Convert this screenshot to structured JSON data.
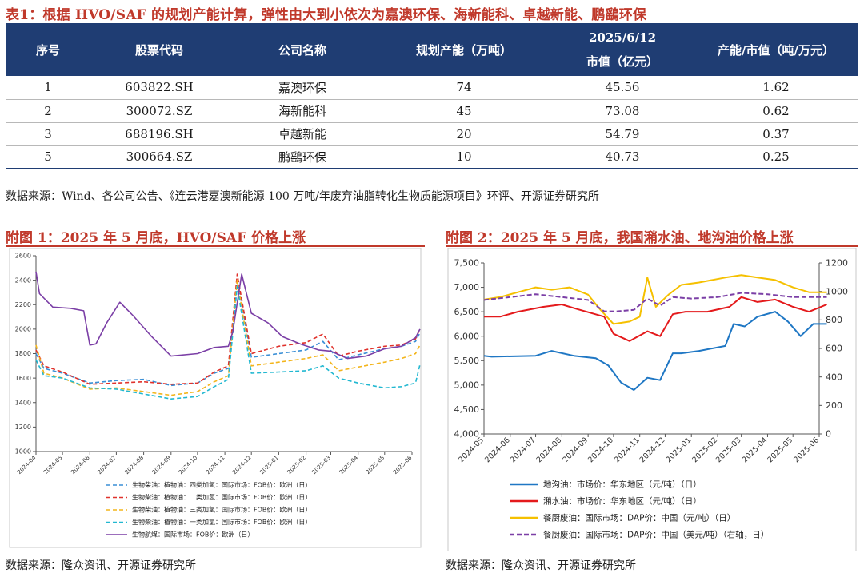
{
  "table1": {
    "title": "表1：根据 HVO/SAF 的规划产能计算，弹性由大到小依次为嘉澳环保、海新能科、卓越新能、鹏鷂环保",
    "headers": {
      "seq": "序号",
      "code": "股票代码",
      "name": "公司名称",
      "capacity": "规划产能（万吨）",
      "date": "2025/6/12",
      "mcap": "市值（亿元）",
      "ratio": "产能/市值（吨/万元）"
    },
    "rows": [
      {
        "seq": "1",
        "code": "603822.SH",
        "name": "嘉澳环保",
        "capacity": "74",
        "mcap": "45.56",
        "ratio": "1.62"
      },
      {
        "seq": "2",
        "code": "300072.SZ",
        "name": "海新能科",
        "capacity": "45",
        "mcap": "73.08",
        "ratio": "0.62"
      },
      {
        "seq": "3",
        "code": "688196.SH",
        "name": "卓越新能",
        "capacity": "20",
        "mcap": "54.79",
        "ratio": "0.37"
      },
      {
        "seq": "5",
        "code": "300664.SZ",
        "name": "鹏鷂环保",
        "capacity": "10",
        "mcap": "40.73",
        "ratio": "0.25"
      }
    ],
    "source": "数据来源：Wind、各公司公告、《连云港嘉澳新能源 100 万吨/年废弃油脂转化生物质能源项目》环评、开源证券研究所"
  },
  "fig1": {
    "title": "附图 1：2025 年 5 月底，HVO/SAF 价格上涨",
    "source": "数据来源：隆众资讯、开源证券研究所"
  },
  "fig2": {
    "title": "附图 2：2025 年 5 月底，我国潲水油、地沟油价格上涨",
    "source": "数据来源：隆众资讯、开源证券研究所"
  },
  "chart_data": [
    {
      "type": "line",
      "x_ticks": [
        "2024-04",
        "2024-05",
        "2024-06",
        "2024-07",
        "2024-08",
        "2024-09",
        "2024-10",
        "2024-11",
        "2024-12",
        "2025-01",
        "2025-02",
        "2025-03",
        "2025-04",
        "2025-05",
        "2025-06"
      ],
      "ylim": [
        1000,
        2600
      ],
      "y_ticks": [
        "1000",
        "1200",
        "1400",
        "1600",
        "1800",
        "2000",
        "2200",
        "2400",
        "2600"
      ],
      "grid": false,
      "legend_position": "bottom",
      "series": [
        {
          "name": "生物柴油：植物油：四类加氢：国际市场：FOB价：欧洲（日）",
          "color": "#3a8fd6",
          "dash": "dashed",
          "x": [
            "2024-04-01",
            "2024-04-10",
            "2024-05-01",
            "2024-06-01",
            "2024-07-01",
            "2024-08-01",
            "2024-09-01",
            "2024-10-01",
            "2024-10-20",
            "2024-11-05",
            "2024-11-15",
            "2024-12-01",
            "2025-01-01",
            "2025-02-01",
            "2025-02-20",
            "2025-03-10",
            "2025-04-01",
            "2025-05-01",
            "2025-05-20",
            "2025-06-05",
            "2025-06-10"
          ],
          "values": [
            1800,
            1680,
            1640,
            1560,
            1580,
            1590,
            1540,
            1560,
            1640,
            1680,
            2400,
            1770,
            1800,
            1830,
            1900,
            1750,
            1790,
            1840,
            1860,
            1900,
            1970
          ]
        },
        {
          "name": "生物柴油：植物油：二类加氢：国际市场：FOB价：欧洲（日）",
          "color": "#e0322c",
          "dash": "dashed",
          "x": [
            "2024-04-01",
            "2024-04-10",
            "2024-05-01",
            "2024-06-01",
            "2024-07-01",
            "2024-08-01",
            "2024-09-01",
            "2024-10-01",
            "2024-10-20",
            "2024-11-05",
            "2024-11-15",
            "2024-12-01",
            "2025-01-01",
            "2025-02-01",
            "2025-02-20",
            "2025-03-10",
            "2025-04-01",
            "2025-05-01",
            "2025-05-20",
            "2025-06-05",
            "2025-06-10"
          ],
          "values": [
            1830,
            1700,
            1650,
            1550,
            1560,
            1570,
            1550,
            1560,
            1650,
            1700,
            2450,
            1800,
            1860,
            1890,
            1960,
            1780,
            1820,
            1860,
            1870,
            1920,
            2000
          ]
        },
        {
          "name": "生物柴油：植物油：三类加氢：国际市场：FOB价：欧洲（日）",
          "color": "#f3b51c",
          "dash": "dashed",
          "x": [
            "2024-04-01",
            "2024-04-10",
            "2024-05-01",
            "2024-06-01",
            "2024-07-01",
            "2024-08-01",
            "2024-09-01",
            "2024-10-01",
            "2024-10-20",
            "2024-11-05",
            "2024-11-15",
            "2024-12-01",
            "2025-01-01",
            "2025-02-01",
            "2025-02-20",
            "2025-03-10",
            "2025-04-01",
            "2025-05-01",
            "2025-05-20",
            "2025-06-05",
            "2025-06-10"
          ],
          "values": [
            1870,
            1640,
            1600,
            1510,
            1520,
            1490,
            1460,
            1490,
            1570,
            1620,
            2400,
            1700,
            1730,
            1760,
            1790,
            1660,
            1690,
            1730,
            1760,
            1800,
            1870
          ]
        },
        {
          "name": "生物柴油：植物油：一类加氢：国际市场：FOB价：欧洲（日）",
          "color": "#22b8d1",
          "dash": "dashed",
          "x": [
            "2024-04-01",
            "2024-04-10",
            "2024-05-01",
            "2024-06-01",
            "2024-07-01",
            "2024-08-01",
            "2024-09-01",
            "2024-10-01",
            "2024-10-20",
            "2024-11-05",
            "2024-11-15",
            "2024-12-01",
            "2025-01-01",
            "2025-02-01",
            "2025-02-20",
            "2025-03-10",
            "2025-04-01",
            "2025-05-01",
            "2025-05-20",
            "2025-06-05",
            "2025-06-10"
          ],
          "values": [
            1750,
            1620,
            1600,
            1520,
            1510,
            1470,
            1430,
            1450,
            1530,
            1590,
            2350,
            1640,
            1650,
            1660,
            1700,
            1600,
            1560,
            1520,
            1530,
            1560,
            1710
          ]
        },
        {
          "name": "生物航煤：国际市场：FOB价：欧洲（日）",
          "color": "#7b3fa6",
          "dash": "solid",
          "x": [
            "2024-04-01",
            "2024-04-05",
            "2024-04-20",
            "2024-05-10",
            "2024-05-25",
            "2024-06-01",
            "2024-06-08",
            "2024-06-20",
            "2024-07-05",
            "2024-07-20",
            "2024-08-10",
            "2024-09-01",
            "2024-10-01",
            "2024-10-20",
            "2024-11-05",
            "2024-11-10",
            "2024-11-20",
            "2024-12-01",
            "2024-12-20",
            "2025-01-05",
            "2025-01-25",
            "2025-02-15",
            "2025-03-01",
            "2025-03-20",
            "2025-04-10",
            "2025-05-01",
            "2025-05-20",
            "2025-06-05",
            "2025-06-10"
          ],
          "values": [
            2470,
            2290,
            2180,
            2170,
            2150,
            1870,
            1880,
            2050,
            2220,
            2110,
            1940,
            1780,
            1800,
            1850,
            1860,
            1980,
            2450,
            2130,
            2050,
            1940,
            1880,
            1830,
            1820,
            1760,
            1780,
            1840,
            1860,
            1930,
            2000
          ]
        }
      ]
    },
    {
      "type": "line",
      "x_ticks": [
        "2024-05",
        "2024-06",
        "2024-07",
        "2024-08",
        "2024-09",
        "2024-10",
        "2024-11",
        "2024-12",
        "2025-01",
        "2025-02",
        "2025-03",
        "2025-04",
        "2025-05",
        "2025-06"
      ],
      "ylim": [
        4000,
        7500
      ],
      "y_ticks": [
        "4,000",
        "4,500",
        "5,000",
        "5,500",
        "6,000",
        "6,500",
        "7,000",
        "7,500"
      ],
      "y2lim": [
        0,
        1200
      ],
      "y2_ticks": [
        "0",
        "200",
        "400",
        "600",
        "800",
        "1000",
        "1200"
      ],
      "grid": false,
      "legend_position": "bottom",
      "series": [
        {
          "name": "地沟油：市场价：华东地区（元/吨）（日）",
          "color": "#1f77c4",
          "axis": "left",
          "x": [
            "2024-05-01",
            "2024-05-10",
            "2024-07-01",
            "2024-07-20",
            "2024-08-15",
            "2024-09-10",
            "2024-09-25",
            "2024-10-10",
            "2024-10-25",
            "2024-11-10",
            "2024-11-25",
            "2024-12-10",
            "2024-12-20",
            "2025-01-10",
            "2025-02-10",
            "2025-02-20",
            "2025-03-05",
            "2025-03-20",
            "2025-04-10",
            "2025-04-25",
            "2025-05-10",
            "2025-05-25",
            "2025-06-10"
          ],
          "values": [
            5600,
            5580,
            5600,
            5700,
            5600,
            5550,
            5400,
            5050,
            4900,
            5150,
            5100,
            5650,
            5650,
            5700,
            5800,
            6250,
            6200,
            6400,
            6500,
            6300,
            6000,
            6250,
            6250
          ]
        },
        {
          "name": "潲水油：市场价：华东地区（元/吨）（日）",
          "color": "#e41a1c",
          "axis": "left",
          "x": [
            "2024-05-01",
            "2024-05-20",
            "2024-06-10",
            "2024-07-10",
            "2024-08-01",
            "2024-08-20",
            "2024-09-20",
            "2024-10-01",
            "2024-10-20",
            "2024-11-10",
            "2024-11-25",
            "2024-12-10",
            "2024-12-25",
            "2025-01-20",
            "2025-02-15",
            "2025-03-01",
            "2025-03-20",
            "2025-04-10",
            "2025-05-01",
            "2025-05-20",
            "2025-06-10"
          ],
          "values": [
            6400,
            6400,
            6500,
            6600,
            6650,
            6550,
            6400,
            6050,
            5900,
            6100,
            6000,
            6450,
            6500,
            6500,
            6600,
            6800,
            6700,
            6750,
            6600,
            6500,
            6650
          ]
        },
        {
          "name": "餐厨废油：国际市场：DAP价：中国（元/吨）（日）",
          "color": "#f5c000",
          "axis": "left",
          "x": [
            "2024-05-01",
            "2024-05-20",
            "2024-06-10",
            "2024-07-01",
            "2024-07-20",
            "2024-08-10",
            "2024-09-01",
            "2024-09-15",
            "2024-10-01",
            "2024-10-20",
            "2024-11-01",
            "2024-11-10",
            "2024-11-20",
            "2024-12-05",
            "2024-12-20",
            "2025-01-10",
            "2025-02-10",
            "2025-03-01",
            "2025-03-20",
            "2025-04-10",
            "2025-05-01",
            "2025-05-20",
            "2025-06-10"
          ],
          "values": [
            6750,
            6800,
            6900,
            7000,
            6950,
            7000,
            6850,
            6550,
            6250,
            6300,
            6400,
            7200,
            6600,
            6850,
            7050,
            7100,
            7200,
            7250,
            7200,
            7150,
            7000,
            6900,
            6900
          ]
        },
        {
          "name": "餐厨废油：国际市场：DAP价：中国（美元/吨）（右轴，日）",
          "color": "#7b3fa6",
          "axis": "right",
          "dash": "dashed",
          "x": [
            "2024-05-01",
            "2024-06-01",
            "2024-07-01",
            "2024-08-01",
            "2024-09-01",
            "2024-09-20",
            "2024-10-05",
            "2024-10-25",
            "2024-11-10",
            "2024-11-25",
            "2024-12-10",
            "2025-01-01",
            "2025-02-01",
            "2025-03-01",
            "2025-04-01",
            "2025-05-01",
            "2025-06-10"
          ],
          "values": [
            940,
            960,
            980,
            960,
            940,
            860,
            860,
            870,
            950,
            900,
            960,
            950,
            960,
            990,
            980,
            960,
            960
          ]
        }
      ]
    }
  ]
}
